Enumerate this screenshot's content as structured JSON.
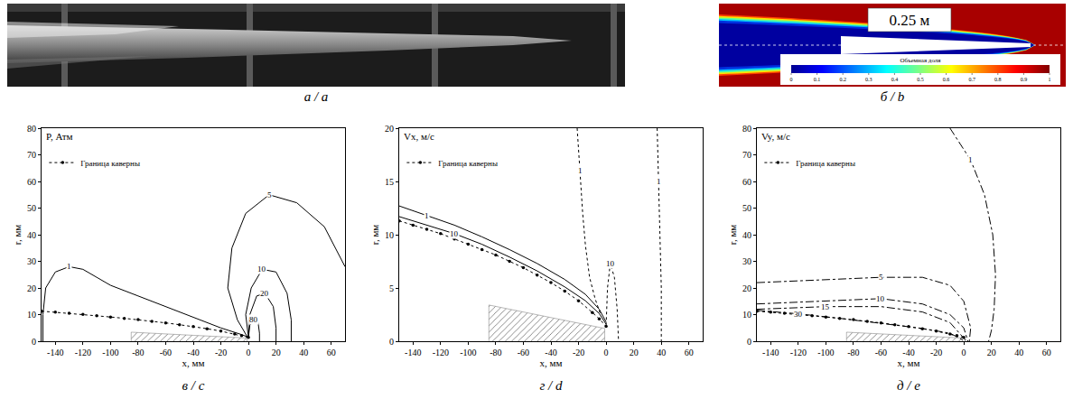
{
  "images": [
    {
      "panel_label": "а / a"
    },
    {
      "panel_label": "б / b",
      "scale_label": "0.25 м",
      "colorbar": {
        "title": "Объемная доля",
        "range": [
          0,
          1
        ],
        "ticks": [
          0,
          0.1,
          0.2,
          0.3,
          0.4,
          0.5,
          0.6,
          0.7,
          0.8,
          0.9,
          1
        ]
      }
    }
  ],
  "chart_data": [
    {
      "type": "line",
      "panel_label": "в / c",
      "title": "P, Атм",
      "xlabel": "x, мм",
      "ylabel": "r, мм",
      "xlim": [
        -150,
        70
      ],
      "ylim": [
        0,
        80
      ],
      "xticks": [
        -140,
        -120,
        -100,
        -80,
        -60,
        -40,
        -20,
        0,
        20,
        40,
        60
      ],
      "yticks": [
        0,
        10,
        20,
        30,
        40,
        50,
        60,
        70,
        80
      ],
      "grid": false,
      "legend": "upper left",
      "series": [
        {
          "name": "Граница каверны",
          "color": "#000000",
          "line_style": "dotted",
          "marker": "circle",
          "x": [
            -150,
            -140,
            -130,
            -120,
            -110,
            -100,
            -90,
            -80,
            -70,
            -60,
            -50,
            -40,
            -30,
            -20,
            -10,
            -5,
            0
          ],
          "y": [
            11.3,
            10.9,
            10.5,
            10.1,
            9.6,
            9.1,
            8.6,
            8.1,
            7.5,
            6.9,
            6.2,
            5.5,
            4.7,
            3.8,
            2.7,
            2.1,
            1.4
          ]
        }
      ],
      "body": {
        "x": [
          -85,
          -85,
          -1,
          -1
        ],
        "y": [
          0,
          3.4,
          1.2,
          0
        ]
      },
      "contours": [
        {
          "level": 1,
          "line_style": "solid",
          "x": [
            -149,
            -149,
            -147,
            -140,
            -130,
            -120,
            -110,
            -100,
            -80,
            -60,
            -40,
            -20,
            -5,
            0
          ],
          "y": [
            0,
            10,
            20,
            26,
            28,
            27,
            24,
            21,
            17,
            13,
            9,
            5,
            2.5,
            1.5
          ]
        },
        {
          "level": 5,
          "line_style": "solid",
          "x": [
            -1,
            -8,
            -15,
            -12,
            -2,
            15,
            35,
            55,
            70
          ],
          "y": [
            1.8,
            8,
            20,
            35,
            48,
            55,
            52,
            43,
            28
          ]
        },
        {
          "level": 10,
          "line_style": "solid",
          "x": [
            0,
            -2,
            2,
            10,
            20,
            28,
            31,
            31
          ],
          "y": [
            1.5,
            10,
            20,
            27,
            26,
            18,
            8,
            0
          ]
        },
        {
          "level": 20,
          "line_style": "solid",
          "x": [
            0,
            1,
            6,
            12,
            18,
            20,
            20
          ],
          "y": [
            1.5,
            10,
            17,
            18,
            13,
            5,
            0
          ]
        },
        {
          "level": 80,
          "line_style": "solid",
          "x": [
            0,
            1,
            4,
            7,
            8,
            8
          ],
          "y": [
            1.5,
            6,
            8,
            7,
            3,
            0
          ]
        }
      ]
    },
    {
      "type": "line",
      "panel_label": "г / d",
      "title": "Vx, м/с",
      "xlabel": "x, мм",
      "ylabel": "r, мм",
      "xlim": [
        -150,
        70
      ],
      "ylim": [
        0,
        20
      ],
      "xticks": [
        -140,
        -120,
        -100,
        -80,
        -60,
        -40,
        -20,
        0,
        20,
        40,
        60
      ],
      "yticks": [
        0,
        5,
        10,
        15,
        20
      ],
      "grid": false,
      "legend": "upper left",
      "series": [
        {
          "name": "Граница каверны",
          "color": "#000000",
          "line_style": "dotted",
          "marker": "circle",
          "x": [
            -150,
            -140,
            -130,
            -120,
            -110,
            -100,
            -90,
            -80,
            -70,
            -60,
            -50,
            -40,
            -30,
            -20,
            -10,
            -5,
            0
          ],
          "y": [
            11.3,
            10.9,
            10.5,
            10.1,
            9.6,
            9.1,
            8.6,
            8.1,
            7.5,
            6.9,
            6.2,
            5.5,
            4.7,
            3.8,
            2.7,
            2.1,
            1.4
          ]
        }
      ],
      "body": {
        "x": [
          -85,
          -85,
          -1,
          -1
        ],
        "y": [
          0,
          3.4,
          1.2,
          0
        ]
      },
      "contours": [
        {
          "level": 1,
          "line_style": "solid",
          "x": [
            -150,
            -130,
            -110,
            -90,
            -70,
            -50,
            -30,
            -15,
            -5,
            0
          ],
          "y": [
            12.7,
            11.8,
            10.9,
            9.8,
            8.6,
            7.3,
            5.8,
            4.4,
            3,
            1.8
          ]
        },
        {
          "level": 10,
          "line_style": "solid",
          "x": [
            -150,
            -130,
            -110,
            -90,
            -70,
            -50,
            -30,
            -15,
            -5,
            0
          ],
          "y": [
            11.7,
            10.9,
            10.1,
            9.1,
            7.9,
            6.6,
            5.1,
            3.8,
            2.6,
            1.6
          ]
        },
        {
          "level": 1,
          "line_style": "dotted",
          "x": [
            -21,
            -19,
            -17,
            -15,
            -12,
            -8,
            -4
          ],
          "y": [
            20,
            16,
            12,
            9,
            6,
            4,
            2.5
          ]
        },
        {
          "level": 10,
          "line_style": "dotted",
          "x": [
            0,
            1,
            3,
            6,
            8,
            9
          ],
          "y": [
            1.5,
            5,
            7.3,
            6,
            3,
            0
          ]
        },
        {
          "level": 1,
          "line_style": "dotted",
          "x": [
            37,
            38,
            39,
            40,
            40
          ],
          "y": [
            20,
            15,
            10,
            5,
            0
          ]
        }
      ]
    },
    {
      "type": "line",
      "panel_label": "д / e",
      "title": "Vy, м/с",
      "xlabel": "x, мм",
      "ylabel": "r, мм",
      "xlim": [
        -150,
        70
      ],
      "ylim": [
        0,
        80
      ],
      "xticks": [
        -140,
        -120,
        -100,
        -80,
        -60,
        -40,
        -20,
        0,
        20,
        40,
        60
      ],
      "yticks": [
        0,
        10,
        20,
        30,
        40,
        50,
        60,
        70,
        80
      ],
      "grid": false,
      "legend": "upper left",
      "series": [
        {
          "name": "Граница каверны",
          "color": "#000000",
          "line_style": "dotted",
          "marker": "circle",
          "x": [
            -150,
            -140,
            -130,
            -120,
            -110,
            -100,
            -90,
            -80,
            -70,
            -60,
            -50,
            -40,
            -30,
            -20,
            -10,
            -5,
            0
          ],
          "y": [
            11.3,
            10.9,
            10.5,
            10.1,
            9.6,
            9.1,
            8.6,
            8.1,
            7.5,
            6.9,
            6.2,
            5.5,
            4.7,
            3.8,
            2.7,
            2.1,
            1.4
          ]
        }
      ],
      "body": {
        "x": [
          -85,
          -85,
          -1,
          -1
        ],
        "y": [
          0,
          3.4,
          1.2,
          0
        ]
      },
      "contours": [
        {
          "level": 1,
          "line_style": "dashdot",
          "x": [
            -10,
            5,
            15,
            21,
            23,
            22,
            20,
            18
          ],
          "y": [
            80,
            68,
            55,
            40,
            25,
            12,
            4,
            0
          ]
        },
        {
          "level": 5,
          "line_style": "dashdot",
          "x": [
            -150,
            -100,
            -60,
            -30,
            -10,
            0,
            5,
            4
          ],
          "y": [
            22,
            23,
            24,
            24,
            21,
            15,
            5,
            0
          ]
        },
        {
          "level": 10,
          "line_style": "dashdot",
          "x": [
            -150,
            -100,
            -60,
            -30,
            -10,
            0,
            3
          ],
          "y": [
            14,
            15,
            16,
            14,
            10,
            5,
            0
          ]
        },
        {
          "level": 15,
          "line_style": "dashdot",
          "x": [
            -150,
            -100,
            -60,
            -30,
            -10,
            2
          ],
          "y": [
            12,
            13,
            13,
            11,
            7,
            0
          ]
        },
        {
          "level": 30,
          "line_style": "dashdot",
          "x": [
            -150,
            -120,
            -90,
            -60,
            -30,
            -10,
            1
          ],
          "y": [
            11.6,
            10.3,
            8.6,
            6.6,
            4.8,
            3,
            0
          ]
        }
      ]
    }
  ]
}
